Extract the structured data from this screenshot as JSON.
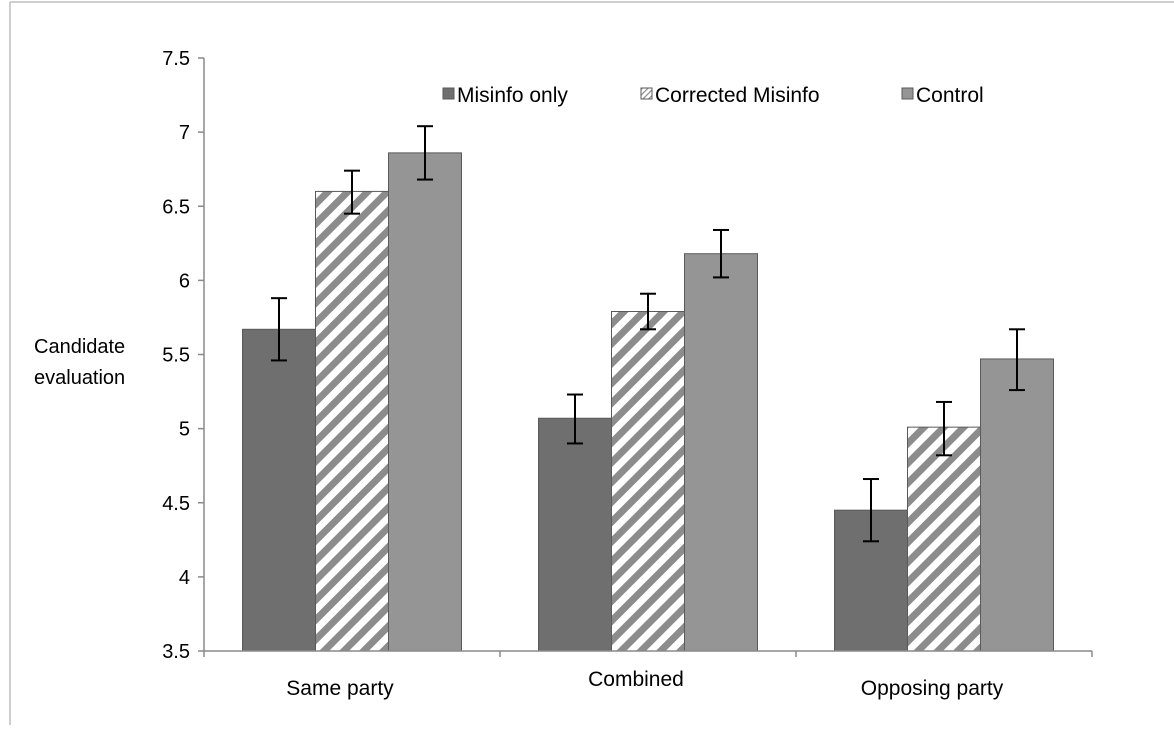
{
  "chart_data": {
    "type": "bar",
    "title": "",
    "xlabel": "",
    "ylabel": [
      "Candidate",
      "evaluation"
    ],
    "ylim": [
      3.5,
      7.5
    ],
    "yticks": [
      3.5,
      4,
      4.5,
      5,
      5.5,
      6,
      6.5,
      7,
      7.5
    ],
    "ytick_labels": [
      "3.5",
      "4",
      "4.5",
      "5",
      "5.5",
      "6",
      "6.5",
      "7",
      "7.5"
    ],
    "categories": [
      "Same party",
      "Combined",
      "Opposing party"
    ],
    "grid": false,
    "legend_position": "top",
    "series": [
      {
        "name": "Misinfo only",
        "values": [
          5.67,
          5.07,
          4.45
        ],
        "error_low": [
          5.46,
          4.9,
          4.24
        ],
        "error_high": [
          5.88,
          5.23,
          4.66
        ],
        "fill": "#6f6f6f",
        "pattern": "solid"
      },
      {
        "name": "Corrected Misinfo",
        "values": [
          6.6,
          5.79,
          5.01
        ],
        "error_low": [
          6.45,
          5.67,
          4.82
        ],
        "error_high": [
          6.74,
          5.91,
          5.18
        ],
        "fill": "#8c8c8c",
        "pattern": "diagonal-stripes"
      },
      {
        "name": "Control",
        "values": [
          6.86,
          6.18,
          5.47
        ],
        "error_low": [
          6.68,
          6.02,
          5.26
        ],
        "error_high": [
          7.04,
          6.34,
          5.67
        ],
        "fill": "#959595",
        "pattern": "solid"
      }
    ],
    "colors": {
      "axis": "#8a8a8a",
      "bar_stroke": "#5a5a5a",
      "error_bar": "#000000",
      "frame": "#bdbdbd"
    }
  }
}
